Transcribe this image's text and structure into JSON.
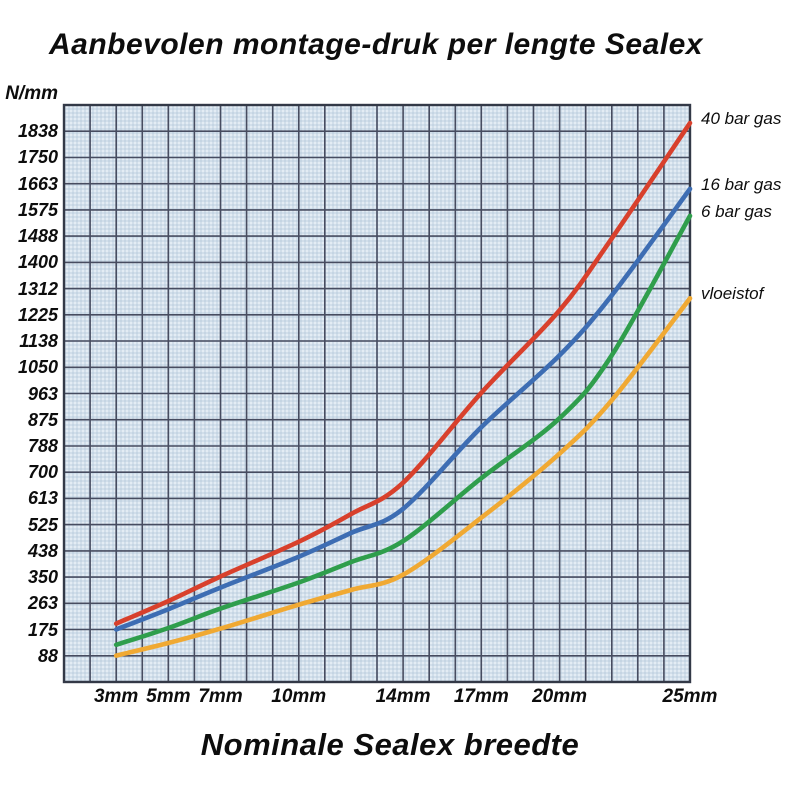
{
  "title": "Aanbevolen montage-druk per lengte Sealex",
  "y_axis": {
    "unit_label": "N/mm",
    "tick_labels_bottom_up": [
      "88",
      "175",
      "263",
      "350",
      "438",
      "525",
      "613",
      "700",
      "788",
      "875",
      "963",
      "1050",
      "1138",
      "1225",
      "1312",
      "1400",
      "1488",
      "1575",
      "1663",
      "1750",
      "1838"
    ]
  },
  "x_axis": {
    "title": "Nominale Sealex breedte",
    "ticks": [
      {
        "label": "3mm",
        "mm": 3
      },
      {
        "label": "5mm",
        "mm": 5
      },
      {
        "label": "7mm",
        "mm": 7
      },
      {
        "label": "10mm",
        "mm": 10
      },
      {
        "label": "14mm",
        "mm": 14
      },
      {
        "label": "17mm",
        "mm": 17
      },
      {
        "label": "20mm",
        "mm": 20
      },
      {
        "label": "25mm",
        "mm": 25
      }
    ]
  },
  "legend": [
    "40 bar gas",
    "16 bar gas",
    "6 bar gas",
    "vloeistof"
  ],
  "colors": {
    "red_40_bar": "#d8402c",
    "blue_16_bar": "#3d6db3",
    "green_6_bar": "#2f9e4c",
    "orange_vloeistof": "#f0a933",
    "grid": "#474c60",
    "border": "#333947",
    "plot_background": "#e3ecf4"
  },
  "chart_data": {
    "type": "line",
    "title": "Aanbevolen montage-druk per lengte Sealex",
    "xlabel": "Nominale Sealex breedte",
    "ylabel": "N/mm",
    "x_unit": "mm",
    "x_range_mm": [
      1,
      25
    ],
    "y_range": [
      0,
      1925
    ],
    "y_tick_step": 87.5,
    "grid": true,
    "legend_position": "right",
    "x_tick_labels": [
      "3mm",
      "5mm",
      "7mm",
      "10mm",
      "14mm",
      "17mm",
      "20mm",
      "25mm"
    ],
    "series": [
      {
        "name": "40 bar gas",
        "color": "#d8402c",
        "points": [
          [
            3,
            195
          ],
          [
            5,
            270
          ],
          [
            7,
            352
          ],
          [
            10,
            468
          ],
          [
            12,
            560
          ],
          [
            14,
            665
          ],
          [
            17,
            965
          ],
          [
            20,
            1240
          ],
          [
            22,
            1480
          ],
          [
            25,
            1865
          ]
        ]
      },
      {
        "name": "16 bar gas",
        "color": "#3d6db3",
        "points": [
          [
            3,
            175
          ],
          [
            5,
            243
          ],
          [
            7,
            315
          ],
          [
            10,
            418
          ],
          [
            12,
            497
          ],
          [
            14,
            578
          ],
          [
            17,
            850
          ],
          [
            20,
            1090
          ],
          [
            22,
            1290
          ],
          [
            25,
            1645
          ]
        ]
      },
      {
        "name": "6 bar gas",
        "color": "#2f9e4c",
        "points": [
          [
            3,
            124
          ],
          [
            5,
            180
          ],
          [
            7,
            245
          ],
          [
            10,
            332
          ],
          [
            12,
            400
          ],
          [
            14,
            470
          ],
          [
            17,
            680
          ],
          [
            20,
            880
          ],
          [
            22,
            1090
          ],
          [
            25,
            1555
          ]
        ]
      },
      {
        "name": "vloeistof",
        "color": "#f0a933",
        "points": [
          [
            3,
            88
          ],
          [
            5,
            130
          ],
          [
            7,
            178
          ],
          [
            10,
            258
          ],
          [
            12,
            307
          ],
          [
            14,
            358
          ],
          [
            17,
            548
          ],
          [
            20,
            762
          ],
          [
            22,
            940
          ],
          [
            25,
            1280
          ]
        ]
      }
    ]
  }
}
